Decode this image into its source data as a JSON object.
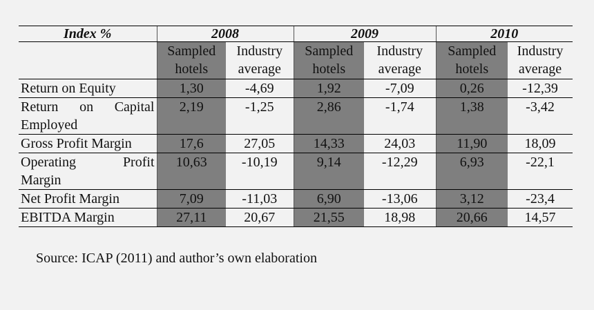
{
  "table": {
    "corner_label": "Index %",
    "years": [
      "2008",
      "2009",
      "2010"
    ],
    "subheaders": [
      {
        "line1": "Sampled",
        "line2": "hotels"
      },
      {
        "line1": "Industry",
        "line2": "average"
      }
    ],
    "rows": [
      {
        "label_lines": [
          "Return on Equity"
        ],
        "values": [
          "1,30",
          "-4,69",
          "1,92",
          "-7,09",
          "0,26",
          "-12,39"
        ]
      },
      {
        "label_lines": [
          "Return on Capital",
          "Employed"
        ],
        "values": [
          "2,19",
          "-1,25",
          "2,86",
          "-1,74",
          "1,38",
          "-3,42"
        ]
      },
      {
        "label_lines": [
          "Gross Profit Margin"
        ],
        "values": [
          "17,6",
          "27,05",
          "14,33",
          "24,03",
          "11,90",
          "18,09"
        ]
      },
      {
        "label_lines": [
          "Operating Profit",
          "Margin"
        ],
        "values": [
          "10,63",
          "-10,19",
          "9,14",
          "-12,29",
          "6,93",
          "-22,1"
        ]
      },
      {
        "label_lines": [
          "Net Profit Margin"
        ],
        "values": [
          "7,09",
          "-11,03",
          "6,90",
          "-13,06",
          "3,12",
          "-23,4"
        ]
      },
      {
        "label_lines": [
          "EBITDA Margin"
        ],
        "values": [
          "27,11",
          "20,67",
          "21,55",
          "18,98",
          "20,66",
          "14,57"
        ]
      }
    ],
    "shaded_color": "#7f7f7f"
  },
  "source_note": "Source: ICAP (2011) and author’s own elaboration"
}
